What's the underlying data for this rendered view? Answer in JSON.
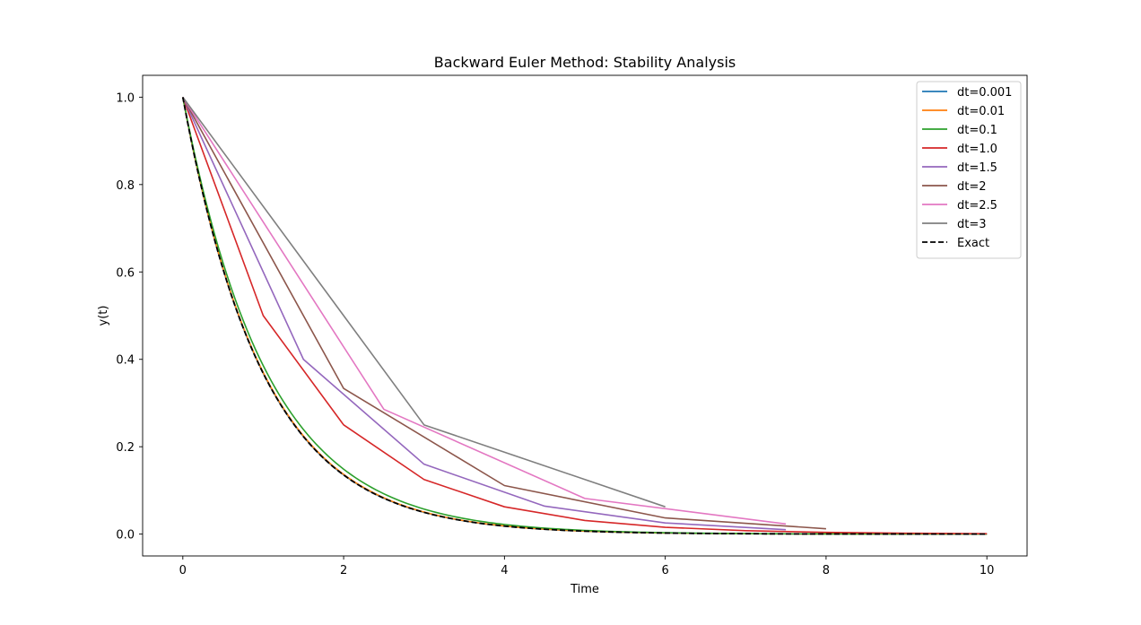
{
  "chart_data": {
    "type": "line",
    "title": "Backward Euler Method: Stability Analysis",
    "xlabel": "Time",
    "ylabel": "y(t)",
    "xlim": [
      -0.5,
      10.5
    ],
    "ylim": [
      -0.05,
      1.05
    ],
    "xticks": [
      0,
      2,
      4,
      6,
      8,
      10
    ],
    "yticks": [
      0.0,
      0.2,
      0.4,
      0.6,
      0.8,
      1.0
    ],
    "xtick_labels": [
      "0",
      "2",
      "4",
      "6",
      "8",
      "10"
    ],
    "ytick_labels": [
      "0.0",
      "0.2",
      "0.4",
      "0.6",
      "0.8",
      "1.0"
    ],
    "grid": false,
    "legend_position": "top-right",
    "series": [
      {
        "name": "dt=0.001",
        "color": "#1f77b4",
        "style": "solid",
        "kind": "smooth",
        "dt": 0.001,
        "t_end": 10
      },
      {
        "name": "dt=0.01",
        "color": "#ff7f0e",
        "style": "solid",
        "kind": "smooth",
        "dt": 0.01,
        "t_end": 10
      },
      {
        "name": "dt=0.1",
        "color": "#2ca02c",
        "style": "solid",
        "kind": "smooth",
        "dt": 0.1,
        "t_end": 10
      },
      {
        "name": "dt=1.0",
        "color": "#d62728",
        "style": "solid",
        "x": [
          0,
          1,
          2,
          3,
          4,
          5,
          6,
          7,
          8,
          9,
          10
        ],
        "y": [
          1.0,
          0.5,
          0.25,
          0.125,
          0.0625,
          0.03125,
          0.015625,
          0.0078125,
          0.0039063,
          0.0019531,
          0.0009766
        ]
      },
      {
        "name": "dt=1.5",
        "color": "#9467bd",
        "style": "solid",
        "x": [
          0,
          1.5,
          3,
          4.5,
          6,
          7.5
        ],
        "y": [
          1.0,
          0.4,
          0.16,
          0.064,
          0.0256,
          0.01024
        ]
      },
      {
        "name": "dt=2",
        "color": "#8c564b",
        "style": "solid",
        "x": [
          0,
          2,
          4,
          6,
          8
        ],
        "y": [
          1.0,
          0.3333,
          0.1111,
          0.037,
          0.0123
        ]
      },
      {
        "name": "dt=2.5",
        "color": "#e377c2",
        "style": "solid",
        "x": [
          0,
          2.5,
          5,
          7.5
        ],
        "y": [
          1.0,
          0.2857,
          0.0816,
          0.0233
        ]
      },
      {
        "name": "dt=3",
        "color": "#7f7f7f",
        "style": "solid",
        "x": [
          0,
          3,
          6
        ],
        "y": [
          1.0,
          0.25,
          0.0625
        ]
      },
      {
        "name": "Exact",
        "color": "#000000",
        "style": "dashed",
        "kind": "exact",
        "t_end": 10
      }
    ]
  }
}
